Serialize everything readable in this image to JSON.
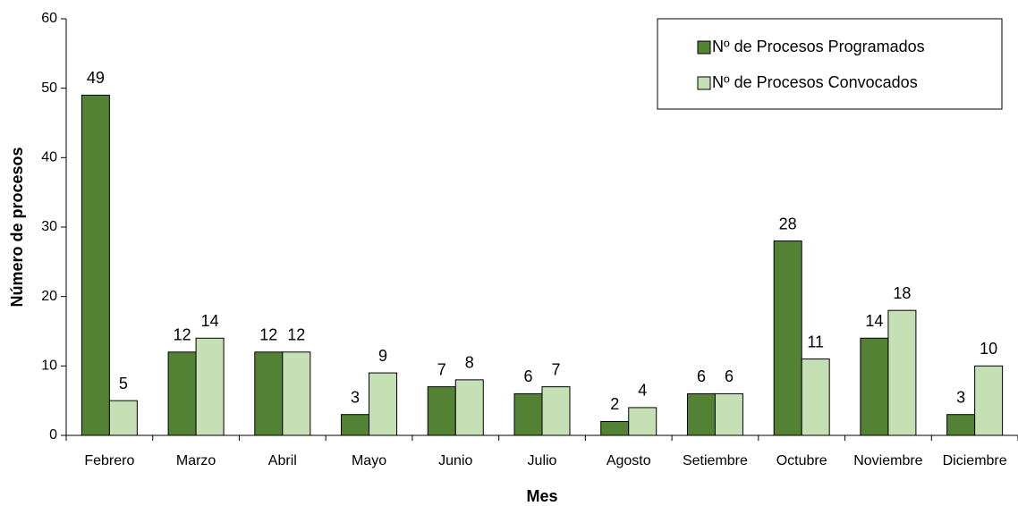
{
  "chart_data": {
    "type": "bar",
    "xlabel": "Mes",
    "ylabel": "Número de procesos",
    "categories": [
      "Febrero",
      "Marzo",
      "Abril",
      "Mayo",
      "Junio",
      "Julio",
      "Agosto",
      "Setiembre",
      "Octubre",
      "Noviembre",
      "Diciembre"
    ],
    "series": [
      {
        "name": "Nº de Procesos Programados",
        "color": "#548235",
        "values": [
          49,
          12,
          12,
          3,
          7,
          6,
          2,
          6,
          28,
          14,
          3
        ]
      },
      {
        "name": "Nº de Procesos Convocados",
        "color": "#c5e0b4",
        "values": [
          5,
          14,
          12,
          9,
          8,
          7,
          4,
          6,
          11,
          18,
          10
        ]
      }
    ],
    "ylim": [
      0,
      60
    ],
    "yticks": [
      0,
      10,
      20,
      30,
      40,
      50,
      60
    ],
    "grid": false,
    "legend": "upper right"
  }
}
